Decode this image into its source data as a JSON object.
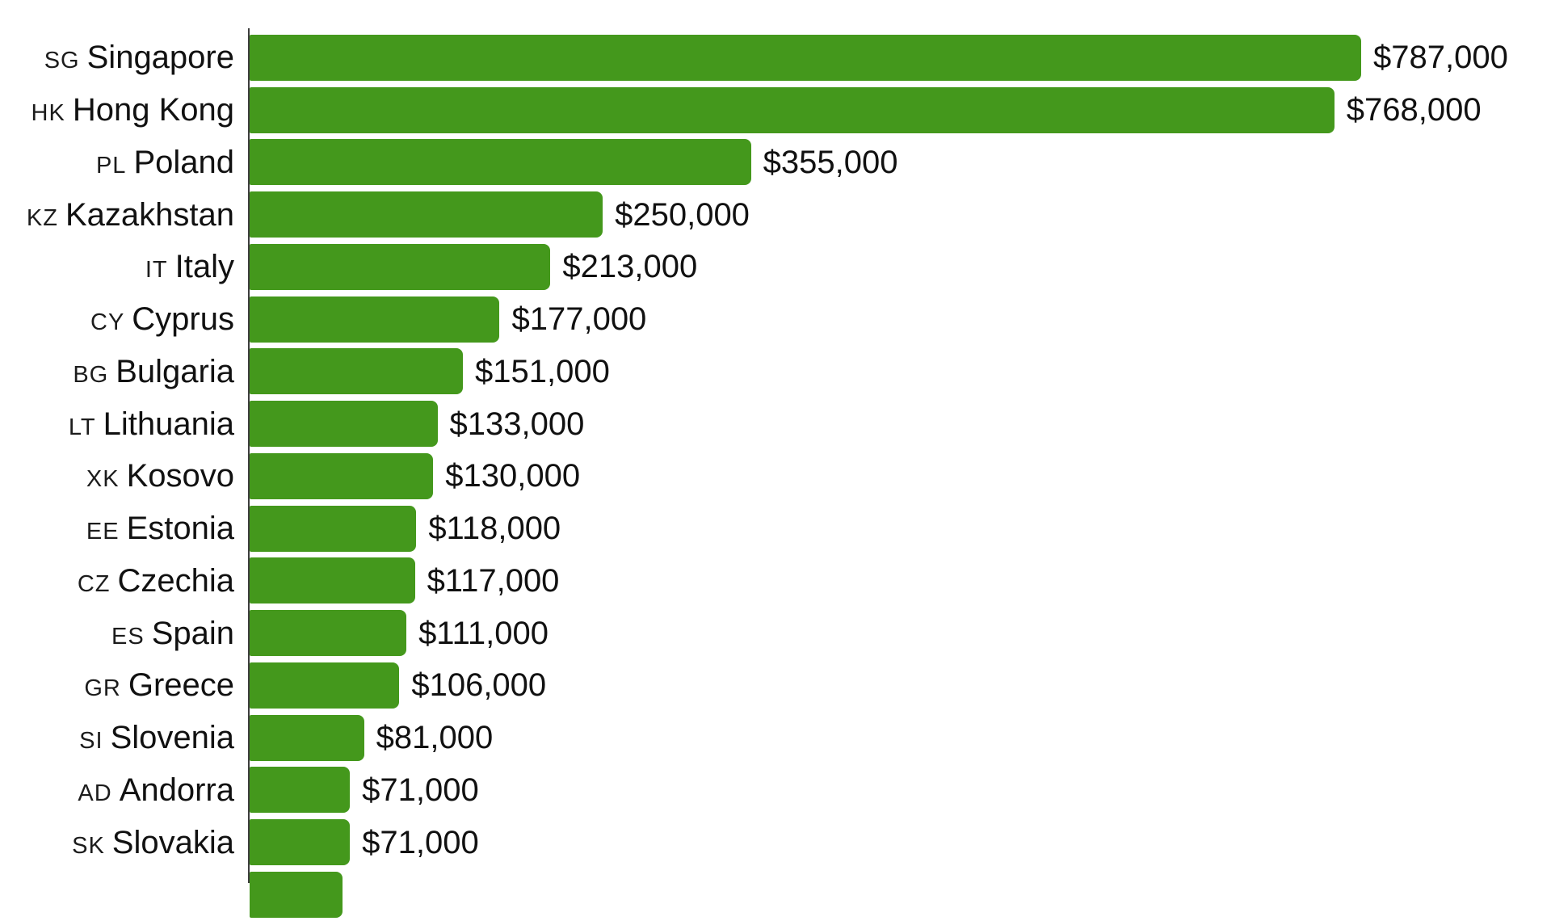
{
  "chart_data": {
    "type": "bar",
    "orientation": "horizontal",
    "title": "",
    "xlabel": "",
    "ylabel": "",
    "unit": "USD",
    "legend": "none",
    "grid": "off",
    "axis_line_color": "#3d3d3d",
    "bar_color": "#44981c",
    "text_color": "#111111",
    "background_color": "#ffffff",
    "max_value": 787000,
    "xlim": [
      0,
      787000
    ],
    "categories": [
      "Singapore",
      "Hong Kong",
      "Poland",
      "Kazakhstan",
      "Italy",
      "Cyprus",
      "Bulgaria",
      "Lithuania",
      "Kosovo",
      "Estonia",
      "Czechia",
      "Spain",
      "Greece",
      "Slovenia",
      "Andorra",
      "Slovakia"
    ],
    "values": [
      787000,
      768000,
      355000,
      250000,
      213000,
      177000,
      151000,
      133000,
      130000,
      118000,
      117000,
      111000,
      106000,
      81000,
      71000,
      71000
    ],
    "rows": [
      {
        "code": "SG",
        "name": "Singapore",
        "value": 787000,
        "display_value": "$787,000"
      },
      {
        "code": "HK",
        "name": "Hong Kong",
        "value": 768000,
        "display_value": "$768,000"
      },
      {
        "code": "PL",
        "name": "Poland",
        "value": 355000,
        "display_value": "$355,000"
      },
      {
        "code": "KZ",
        "name": "Kazakhstan",
        "value": 250000,
        "display_value": "$250,000"
      },
      {
        "code": "IT",
        "name": "Italy",
        "value": 213000,
        "display_value": "$213,000"
      },
      {
        "code": "CY",
        "name": "Cyprus",
        "value": 177000,
        "display_value": "$177,000"
      },
      {
        "code": "BG",
        "name": "Bulgaria",
        "value": 151000,
        "display_value": "$151,000"
      },
      {
        "code": "LT",
        "name": "Lithuania",
        "value": 133000,
        "display_value": "$133,000"
      },
      {
        "code": "XK",
        "name": "Kosovo",
        "value": 130000,
        "display_value": "$130,000"
      },
      {
        "code": "EE",
        "name": "Estonia",
        "value": 118000,
        "display_value": "$118,000"
      },
      {
        "code": "CZ",
        "name": "Czechia",
        "value": 117000,
        "display_value": "$117,000"
      },
      {
        "code": "ES",
        "name": "Spain",
        "value": 111000,
        "display_value": "$111,000"
      },
      {
        "code": "GR",
        "name": "Greece",
        "value": 106000,
        "display_value": "$106,000"
      },
      {
        "code": "SI",
        "name": "Slovenia",
        "value": 81000,
        "display_value": "$81,000"
      },
      {
        "code": "AD",
        "name": "Andorra",
        "value": 71000,
        "display_value": "$71,000"
      },
      {
        "code": "SK",
        "name": "Slovakia",
        "value": 71000,
        "display_value": "$71,000"
      },
      {
        "code": "",
        "name": "",
        "value": 66000,
        "display_value": "",
        "partial": true
      }
    ]
  }
}
